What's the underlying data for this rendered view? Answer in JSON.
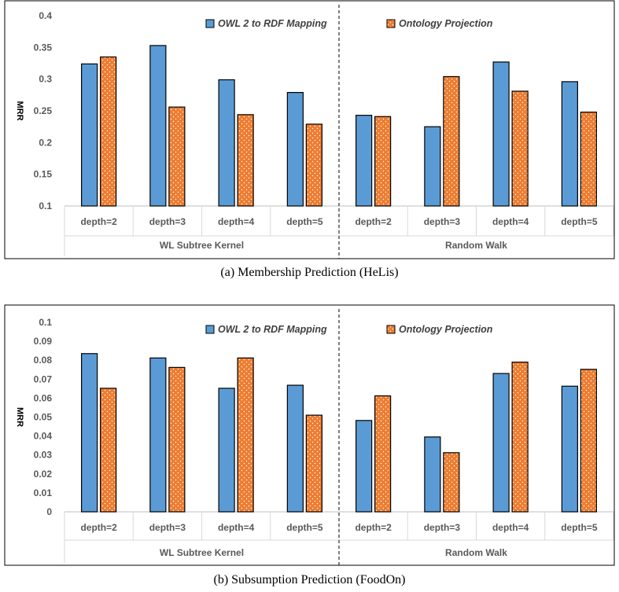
{
  "colors": {
    "series_blue": "#5b9bd5",
    "series_orange": "#ed7d31",
    "bar_outline": "#000000",
    "grid": "#d9d9d9",
    "frame": "#000000"
  },
  "chart_data": [
    {
      "type": "bar",
      "caption": "(a) Membership Prediction (HeLis)",
      "ylabel": "MRR",
      "ylim": [
        0.1,
        0.4
      ],
      "yticks": [
        "0.1",
        "0.15",
        "0.2",
        "0.25",
        "0.3",
        "0.35",
        "0.4"
      ],
      "ytick_values": [
        0.1,
        0.15,
        0.2,
        0.25,
        0.3,
        0.35,
        0.4
      ],
      "grid": false,
      "legend_position": "top",
      "groups": [
        {
          "label": "WL Subtree Kernel",
          "categories": [
            "depth=2",
            "depth=3",
            "depth=4",
            "depth=5"
          ]
        },
        {
          "label": "Random Walk",
          "categories": [
            "depth=2",
            "depth=3",
            "depth=4",
            "depth=5"
          ]
        }
      ],
      "series": [
        {
          "name": "OWL 2 to RDF Mapping",
          "values": [
            0.324,
            0.353,
            0.299,
            0.279,
            0.243,
            0.225,
            0.327,
            0.296
          ]
        },
        {
          "name": "Ontology Projection",
          "values": [
            0.335,
            0.256,
            0.244,
            0.229,
            0.241,
            0.304,
            0.281,
            0.248
          ]
        }
      ]
    },
    {
      "type": "bar",
      "caption": "(b) Subsumption Prediction (FoodOn)",
      "ylabel": "MRR",
      "ylim": [
        0,
        0.1
      ],
      "yticks": [
        "0",
        "0.01",
        "0.02",
        "0.03",
        "0.04",
        "0.05",
        "0.06",
        "0.07",
        "0.08",
        "0.09",
        "0.1"
      ],
      "ytick_values": [
        0,
        0.01,
        0.02,
        0.03,
        0.04,
        0.05,
        0.06,
        0.07,
        0.08,
        0.09,
        0.1
      ],
      "grid": false,
      "legend_position": "top",
      "groups": [
        {
          "label": "WL Subtree Kernel",
          "categories": [
            "depth=2",
            "depth=3",
            "depth=4",
            "depth=5"
          ]
        },
        {
          "label": "Random Walk",
          "categories": [
            "depth=2",
            "depth=3",
            "depth=4",
            "depth=5"
          ]
        }
      ],
      "series": [
        {
          "name": "OWL 2 to RDF Mapping",
          "values": [
            0.0835,
            0.0812,
            0.0652,
            0.0668,
            0.0482,
            0.0395,
            0.073,
            0.0663
          ]
        },
        {
          "name": "Ontology Projection",
          "values": [
            0.0652,
            0.0762,
            0.0812,
            0.051,
            0.0612,
            0.0312,
            0.079,
            0.0752
          ]
        }
      ]
    }
  ]
}
